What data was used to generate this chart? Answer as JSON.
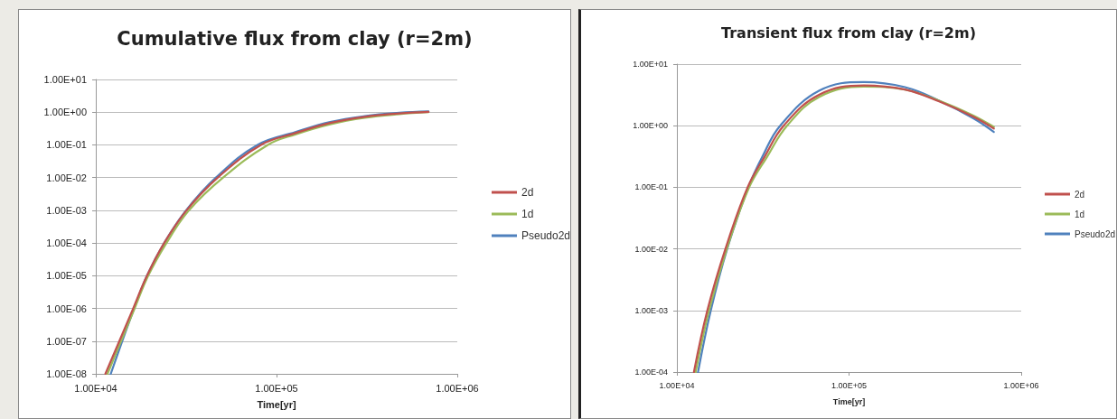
{
  "chart_data": [
    {
      "type": "line",
      "title": "Cumulative flux from clay (r=2m)",
      "xlabel": "Time[yr]",
      "log": "xy",
      "grid": "y",
      "legend": "right",
      "marker": "none",
      "line_style": "solid",
      "xlim": [
        10000,
        1000000
      ],
      "xticks": [
        {
          "value": 10000,
          "label": "1.00E+04"
        },
        {
          "value": 100000,
          "label": "1.00E+05"
        },
        {
          "value": 1000000,
          "label": "1.00E+06"
        }
      ],
      "ylim": [
        1e-08,
        10
      ],
      "yticks": [
        {
          "value": 1e-08,
          "label": "1.00E-08"
        },
        {
          "value": 1e-07,
          "label": "1.00E-07"
        },
        {
          "value": 1e-06,
          "label": "1.00E-06"
        },
        {
          "value": 1e-05,
          "label": "1.00E-05"
        },
        {
          "value": 0.0001,
          "label": "1.00E-04"
        },
        {
          "value": 0.001,
          "label": "1.00E-03"
        },
        {
          "value": 0.01,
          "label": "1.00E-02"
        },
        {
          "value": 0.1,
          "label": "1.00E-01"
        },
        {
          "value": 1,
          "label": "1.00E+00"
        },
        {
          "value": 10,
          "label": "1.00E+01"
        }
      ],
      "series": [
        {
          "name": "2d",
          "color": "#c0504d",
          "x": [
            11300,
            13500,
            16100,
            19200,
            23900,
            31800,
            47300,
            82000,
            127000,
            198000,
            308000,
            478000,
            693000
          ],
          "values": [
            1e-08,
            1e-07,
            1e-06,
            1e-05,
            0.0001,
            0.001,
            0.01,
            0.1,
            0.229,
            0.468,
            0.724,
            0.912,
            1.02
          ]
        },
        {
          "name": "1d",
          "color": "#9bbb59",
          "x": [
            11600,
            13800,
            16400,
            19500,
            24600,
            32800,
            50600,
            89500,
            127000,
            198000,
            308000,
            478000,
            693000
          ],
          "values": [
            1e-08,
            1e-07,
            1e-06,
            1e-05,
            0.0001,
            0.001,
            0.01,
            0.1,
            0.209,
            0.427,
            0.676,
            0.871,
            1.0
          ]
        },
        {
          "name": "Pseudo2d",
          "color": "#4f81bd",
          "x": [
            12100,
            14000,
            16300,
            19200,
            23900,
            31600,
            46200,
            78500,
            127000,
            198000,
            308000,
            478000,
            693000
          ],
          "values": [
            1e-08,
            1e-07,
            1e-06,
            1e-05,
            0.0001,
            0.001,
            0.01,
            0.1,
            0.245,
            0.501,
            0.759,
            0.955,
            1.05
          ]
        }
      ]
    },
    {
      "type": "line",
      "title": "Transient flux from clay (r=2m)",
      "xlabel": "Time[yr]",
      "log": "xy",
      "grid": "y",
      "legend": "right",
      "marker": "none",
      "line_style": "solid",
      "xlim": [
        10000,
        1000000
      ],
      "xticks": [
        {
          "value": 10000,
          "label": "1.00E+04"
        },
        {
          "value": 100000,
          "label": "1.00E+05"
        },
        {
          "value": 1000000,
          "label": "1.00E+06"
        }
      ],
      "ylim": [
        0.0001,
        10
      ],
      "yticks": [
        {
          "value": 0.0001,
          "label": "1.00E-04"
        },
        {
          "value": 0.001,
          "label": "1.00E-03"
        },
        {
          "value": 0.01,
          "label": "1.00E-02"
        },
        {
          "value": 0.1,
          "label": "1.00E-01"
        },
        {
          "value": 1,
          "label": "1.00E+00"
        },
        {
          "value": 10,
          "label": "1.00E+01"
        }
      ],
      "series": [
        {
          "name": "2d",
          "color": "#c0504d",
          "x": [
            12560,
            15030,
            19140,
            25760,
            32360,
            41690,
            67300,
            121900,
            211300,
            333400,
            527200,
            693400
          ],
          "values": [
            0.0001,
            0.001,
            0.01,
            0.1,
            0.316,
            1,
            3.2,
            4.5,
            3.86,
            2.48,
            1.4,
            0.9
          ]
        },
        {
          "name": "1d",
          "color": "#9bbb59",
          "x": [
            12850,
            15380,
            19500,
            26300,
            33500,
            43650,
            67300,
            121900,
            211300,
            333400,
            527200,
            693400
          ],
          "values": [
            0.0001,
            0.001,
            0.01,
            0.1,
            0.316,
            1,
            2.95,
            4.32,
            3.85,
            2.54,
            1.46,
            0.955
          ]
        },
        {
          "name": "Pseudo2d",
          "color": "#4f81bd",
          "x": [
            13270,
            15740,
            19590,
            26000,
            31410,
            39810,
            67300,
            121900,
            211300,
            333400,
            527200,
            693400
          ],
          "values": [
            0.0001,
            0.001,
            0.01,
            0.1,
            0.316,
            1,
            3.72,
            5.1,
            4.23,
            2.55,
            1.32,
            0.794
          ]
        }
      ]
    }
  ]
}
